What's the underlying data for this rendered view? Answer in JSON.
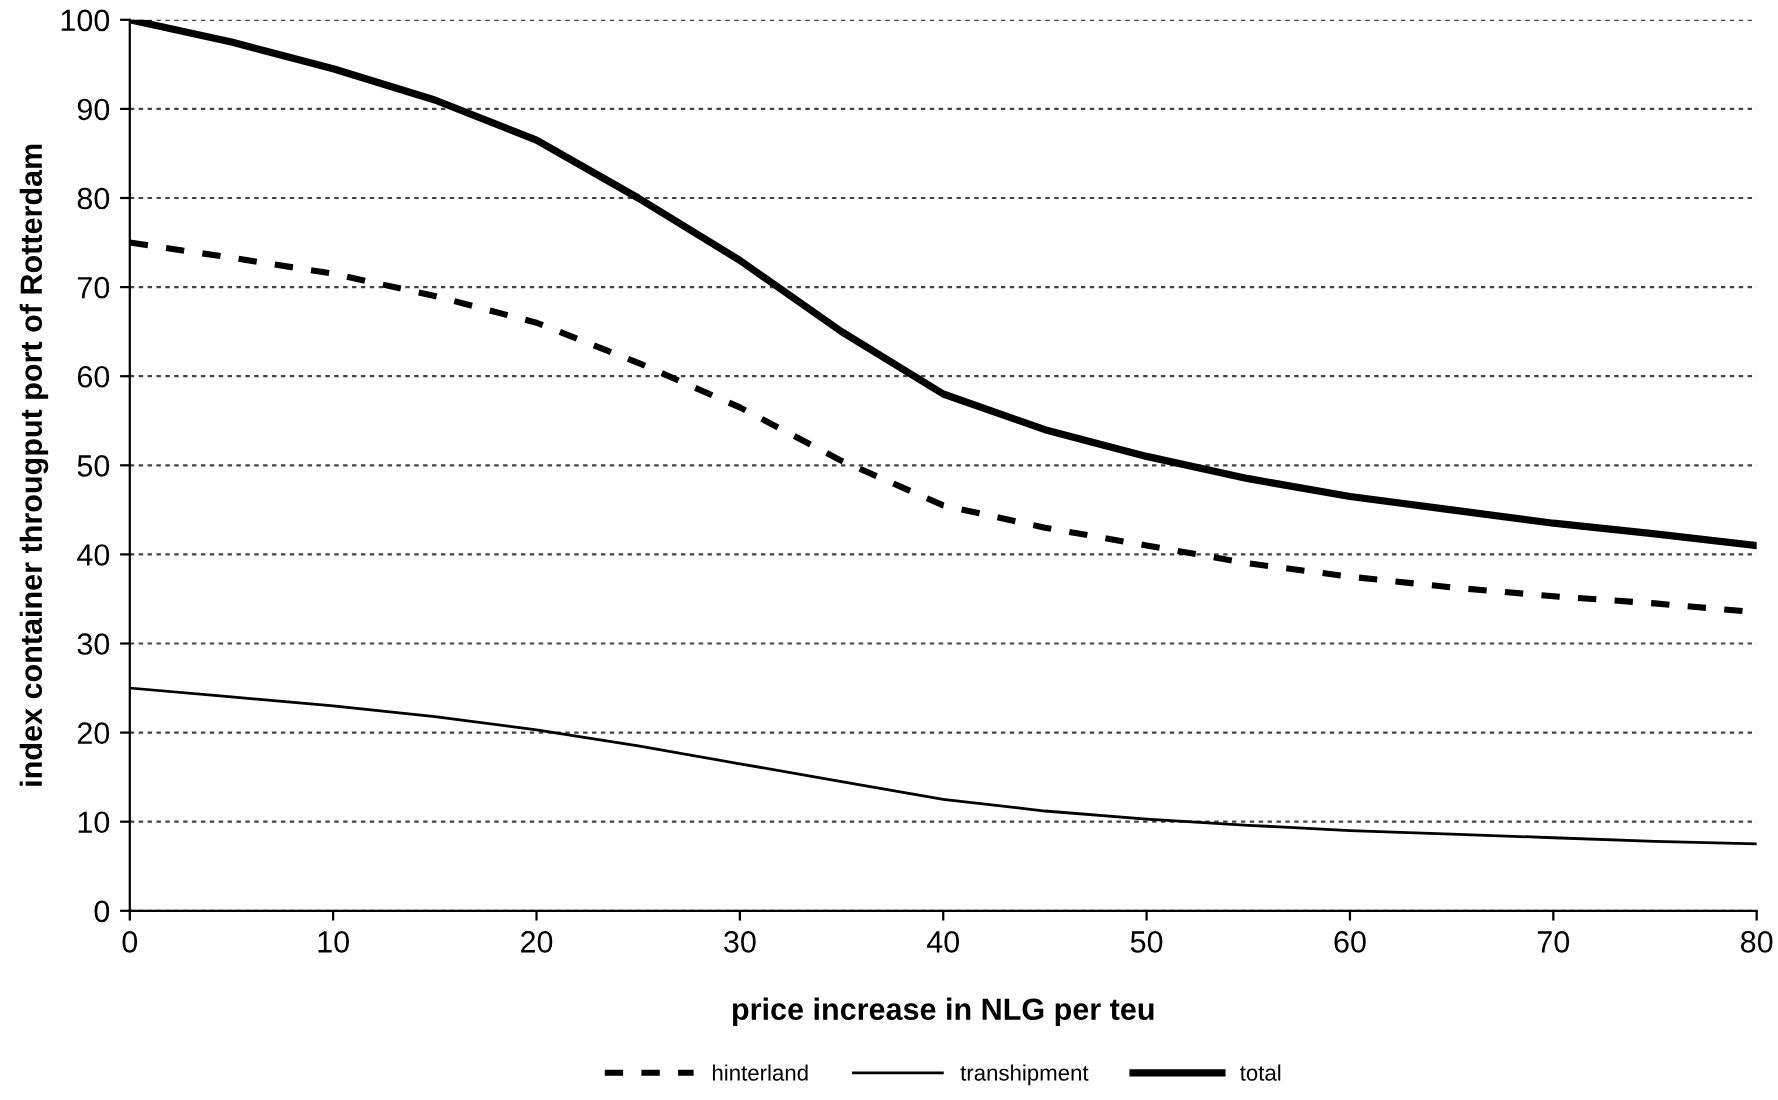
{
  "chart_data": {
    "type": "line",
    "xlabel": "price increase in NLG per teu",
    "ylabel": "index container througput port of Rotterdam",
    "x": [
      0,
      5,
      10,
      15,
      20,
      25,
      30,
      35,
      40,
      45,
      50,
      55,
      60,
      65,
      70,
      75,
      80
    ],
    "series": [
      {
        "name": "hinterland",
        "color": "#000000",
        "line_style": "dashed",
        "values": [
          75,
          73.3,
          71.5,
          69,
          66,
          61.5,
          56.5,
          50.5,
          45.5,
          43,
          41,
          39,
          37.5,
          36.3,
          35.3,
          34.5,
          33.5
        ]
      },
      {
        "name": "transhipment",
        "color": "#000000",
        "line_style": "solid",
        "values": [
          25,
          24,
          23,
          21.8,
          20.3,
          18.5,
          16.5,
          14.5,
          12.5,
          11.2,
          10.3,
          9.6,
          9,
          8.6,
          8.2,
          7.8,
          7.5
        ]
      },
      {
        "name": "total",
        "color": "#000000",
        "line_style": "solid",
        "values": [
          100,
          97.5,
          94.5,
          91,
          86.5,
          80,
          73,
          65,
          58,
          54,
          51,
          48.5,
          46.5,
          45,
          43.5,
          42.3,
          41
        ]
      }
    ],
    "xlim": [
      0,
      80
    ],
    "xticks": [
      0,
      10,
      20,
      30,
      40,
      50,
      60,
      70,
      80
    ],
    "ylim": [
      0,
      100
    ],
    "yticks": [
      0,
      10,
      20,
      30,
      40,
      50,
      60,
      70,
      80,
      90,
      100
    ],
    "grid": "y",
    "legend": "bottom",
    "marker": "none"
  }
}
